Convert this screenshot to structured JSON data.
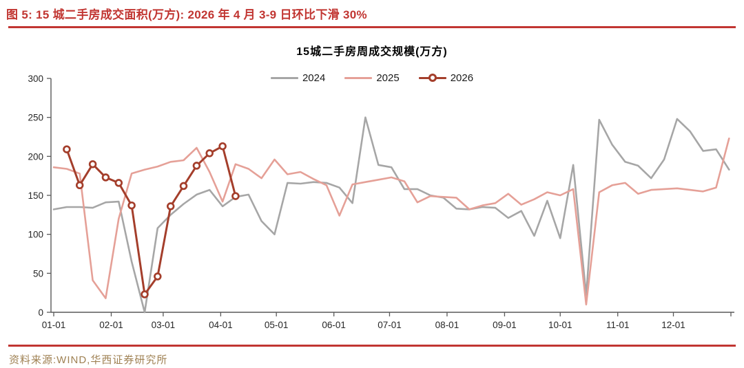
{
  "figure": {
    "caption": "图 5: 15 城二手房成交面积(万方): 2026 年 4 月 3-9 日环比下滑 30%",
    "source": "资料来源:WIND,华西证券研究所"
  },
  "colors": {
    "accent_red": "#c13531",
    "source_text": "#9f8153",
    "axis_line": "#595959",
    "tick_label": "#262626"
  },
  "chart_data": {
    "type": "line",
    "title": "15城二手房周成交规模(万方)",
    "xlabel": "",
    "ylabel": "",
    "ylim": [
      0,
      300
    ],
    "y_ticks": [
      0,
      50,
      100,
      150,
      200,
      250,
      300
    ],
    "x_ticks": [
      {
        "label": "01-01",
        "day": 0
      },
      {
        "label": "02-01",
        "day": 31
      },
      {
        "label": "03-01",
        "day": 59
      },
      {
        "label": "04-01",
        "day": 90
      },
      {
        "label": "05-01",
        "day": 120
      },
      {
        "label": "06-01",
        "day": 151
      },
      {
        "label": "07-01",
        "day": 181
      },
      {
        "label": "08-01",
        "day": 212
      },
      {
        "label": "09-01",
        "day": 243
      },
      {
        "label": "10-01",
        "day": 273
      },
      {
        "label": "11-01",
        "day": 304
      },
      {
        "label": "12-01",
        "day": 334
      }
    ],
    "axis_end_day": 365,
    "grid": false,
    "legend_position": "top-center",
    "x_unit": "week",
    "series": [
      {
        "name": "2024",
        "color": "#a6a6a6",
        "marker": false,
        "start_week": 0,
        "values": [
          132,
          135,
          135,
          134,
          141,
          142,
          65,
          0,
          108,
          125,
          139,
          151,
          157,
          136,
          148,
          151,
          117,
          100,
          166,
          165,
          167,
          166,
          160,
          140,
          250,
          189,
          186,
          158,
          158,
          150,
          147,
          133,
          132,
          135,
          134,
          121,
          130,
          98,
          143,
          95,
          189,
          22,
          247,
          215,
          193,
          188,
          172,
          196,
          248,
          232,
          207,
          209,
          183
        ]
      },
      {
        "name": "2025",
        "color": "#e5a097",
        "marker": false,
        "start_week": 0,
        "values": [
          186,
          184,
          178,
          41,
          18,
          120,
          178,
          183,
          187,
          193,
          195,
          211,
          180,
          142,
          190,
          184,
          172,
          196,
          177,
          180,
          171,
          163,
          124,
          164,
          167,
          170,
          173,
          168,
          141,
          149,
          148,
          147,
          132,
          137,
          140,
          152,
          138,
          145,
          154,
          150,
          158,
          10,
          154,
          163,
          166,
          152,
          157,
          158,
          159,
          157,
          155,
          160,
          223
        ]
      },
      {
        "name": "2026",
        "color": "#a43e2b",
        "marker": true,
        "start_week": 1,
        "values": [
          209,
          163,
          190,
          173,
          166,
          137,
          23,
          46,
          136,
          162,
          188,
          204,
          213,
          149
        ]
      }
    ]
  }
}
